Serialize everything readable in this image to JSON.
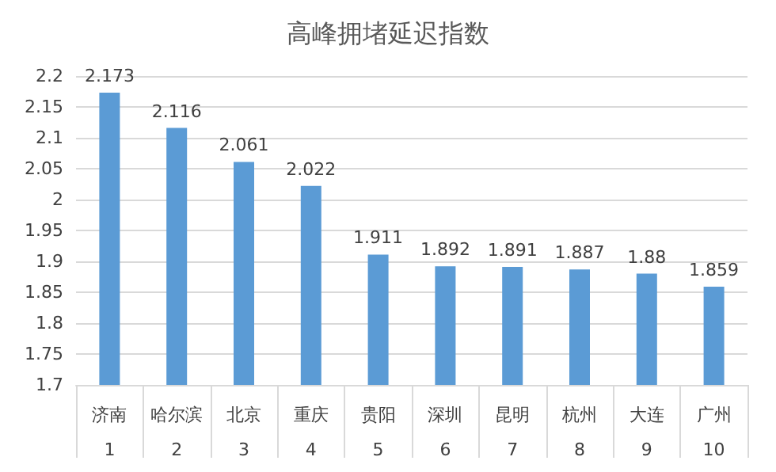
{
  "chart_data": {
    "type": "bar",
    "title": "高峰拥堵延迟指数",
    "categories": [
      "济南\n1",
      "哈尔滨\n2",
      "北京\n3",
      "重庆\n4",
      "贵阳\n5",
      "深圳\n6",
      "昆明\n7",
      "杭州\n8",
      "大连\n9",
      "广州\n10"
    ],
    "values": [
      2.173,
      2.116,
      2.061,
      2.022,
      1.911,
      1.892,
      1.891,
      1.887,
      1.88,
      1.859
    ],
    "color": "#5b9bd5",
    "ylim": [
      1.7,
      2.2
    ],
    "yticks": [
      1.7,
      1.75,
      1.8,
      1.85,
      1.9,
      1.95,
      2,
      2.05,
      2.1,
      2.15,
      2.2
    ],
    "grid": true,
    "data_labels": true
  }
}
